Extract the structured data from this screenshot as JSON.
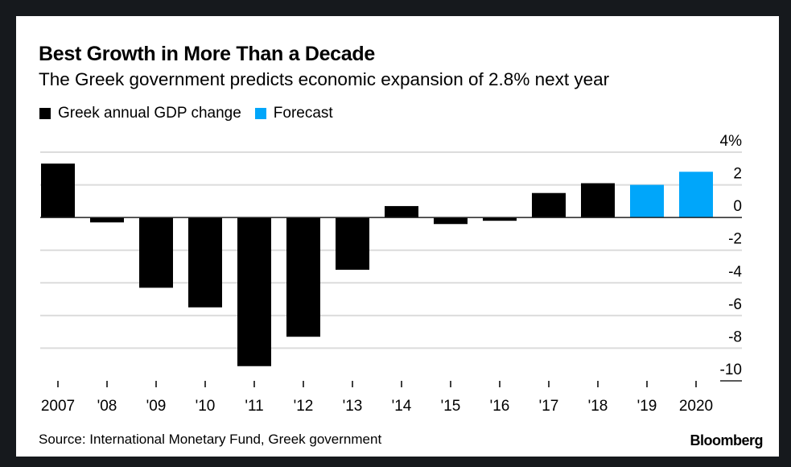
{
  "header": {
    "title": "Best Growth in More Than a Decade",
    "subtitle": "The Greek government predicts economic expansion of 2.8% next year"
  },
  "legend": [
    {
      "label": "Greek annual GDP change",
      "color": "#000000"
    },
    {
      "label": "Forecast",
      "color": "#00A6FA"
    }
  ],
  "footer": {
    "source": "Source: International Monetary Fund, Greek government",
    "brand": "Bloomberg"
  },
  "chart_data": {
    "type": "bar",
    "title": "Best Growth in More Than a Decade",
    "subtitle": "The Greek government predicts economic expansion of 2.8% next year",
    "xlabel": "",
    "ylabel": "",
    "categories": [
      "2007",
      "'08",
      "'09",
      "'10",
      "'11",
      "'12",
      "'13",
      "'14",
      "'15",
      "'16",
      "'17",
      "'18",
      "'19",
      "2020"
    ],
    "series": [
      {
        "name": "Greek annual GDP change",
        "color": "#000000",
        "values": [
          3.3,
          -0.3,
          -4.3,
          -5.5,
          -9.1,
          -7.3,
          -3.2,
          0.7,
          -0.4,
          -0.2,
          1.5,
          2.1,
          null,
          null
        ]
      },
      {
        "name": "Forecast",
        "color": "#00A6FA",
        "values": [
          null,
          null,
          null,
          null,
          null,
          null,
          null,
          null,
          null,
          null,
          null,
          null,
          2.0,
          2.8
        ]
      }
    ],
    "ylim": [
      -10,
      4
    ],
    "yticks": [
      4,
      2,
      0,
      -2,
      -4,
      -6,
      -8,
      -10
    ],
    "ytick_labels": [
      "4%",
      "2",
      "0",
      "-2",
      "-4",
      "-6",
      "-8",
      "-10"
    ],
    "y_axis_side": "right",
    "grid": true,
    "legend_position": "top-left"
  }
}
